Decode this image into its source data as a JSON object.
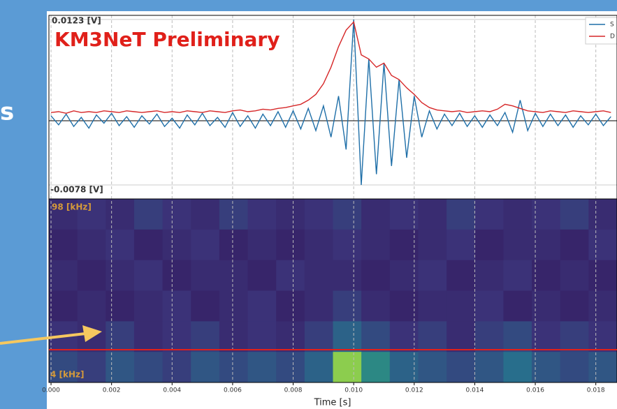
{
  "slide_text": "s",
  "chart_data": {
    "type": "line",
    "annotation": "KM3NeT Preliminary",
    "x_label": "Time [s]",
    "x": [
      0,
      0.00025,
      0.0005,
      0.00075,
      0.001,
      0.00125,
      0.0015,
      0.00175,
      0.002,
      0.00225,
      0.0025,
      0.00275,
      0.003,
      0.00325,
      0.0035,
      0.00375,
      0.004,
      0.00425,
      0.0045,
      0.00475,
      0.005,
      0.00525,
      0.0055,
      0.00575,
      0.006,
      0.00625,
      0.0065,
      0.00675,
      0.007,
      0.00725,
      0.0075,
      0.00775,
      0.008,
      0.00825,
      0.0085,
      0.00875,
      0.009,
      0.00925,
      0.0095,
      0.00975,
      0.01,
      0.01025,
      0.0105,
      0.01075,
      0.011,
      0.01125,
      0.0115,
      0.01175,
      0.012,
      0.01225,
      0.0125,
      0.01275,
      0.013,
      0.01325,
      0.0135,
      0.01375,
      0.014,
      0.01425,
      0.0145,
      0.01475,
      0.015,
      0.01525,
      0.0155,
      0.01575,
      0.016,
      0.01625,
      0.0165,
      0.01675,
      0.017,
      0.01725,
      0.0175,
      0.01775,
      0.018,
      0.01825,
      0.0185
    ],
    "series": [
      {
        "name": "S",
        "color": "#1f6fa8",
        "values": [
          0.0006,
          -0.0005,
          0.0008,
          -0.0007,
          0.0004,
          -0.0009,
          0.0007,
          -0.0003,
          0.0009,
          -0.0006,
          0.0005,
          -0.0008,
          0.0006,
          -0.0004,
          0.0008,
          -0.0007,
          0.0003,
          -0.0009,
          0.0007,
          -0.0005,
          0.0009,
          -0.0006,
          0.0004,
          -0.0008,
          0.001,
          -0.0007,
          0.0006,
          -0.0009,
          0.0008,
          -0.0006,
          0.0011,
          -0.0008,
          0.0012,
          -0.001,
          0.0015,
          -0.0012,
          0.0018,
          -0.002,
          0.003,
          -0.0035,
          0.0123,
          -0.0078,
          0.0075,
          -0.0065,
          0.007,
          -0.0055,
          0.005,
          -0.0045,
          0.003,
          -0.002,
          0.0012,
          -0.001,
          0.0008,
          -0.0006,
          0.0009,
          -0.0007,
          0.0006,
          -0.0008,
          0.0007,
          -0.0006,
          0.001,
          -0.0014,
          0.0025,
          -0.0012,
          0.0009,
          -0.0007,
          0.0008,
          -0.0006,
          0.0007,
          -0.0008,
          0.0006,
          -0.0005,
          0.0008,
          -0.0006,
          0.0005
        ]
      },
      {
        "name": "D",
        "color": "#d62728",
        "values": [
          0.001,
          0.0011,
          0.0009,
          0.0012,
          0.001,
          0.0011,
          0.001,
          0.0012,
          0.0011,
          0.001,
          0.0012,
          0.0011,
          0.001,
          0.0011,
          0.0012,
          0.001,
          0.0011,
          0.001,
          0.0012,
          0.0011,
          0.001,
          0.0012,
          0.0011,
          0.001,
          0.0012,
          0.0013,
          0.0011,
          0.0012,
          0.0014,
          0.0013,
          0.0015,
          0.0016,
          0.0018,
          0.002,
          0.0025,
          0.0032,
          0.0045,
          0.0065,
          0.009,
          0.011,
          0.012,
          0.008,
          0.0075,
          0.0065,
          0.007,
          0.0055,
          0.005,
          0.004,
          0.0032,
          0.0022,
          0.0016,
          0.0013,
          0.0012,
          0.0011,
          0.0012,
          0.001,
          0.0011,
          0.0012,
          0.0011,
          0.0014,
          0.002,
          0.0018,
          0.0015,
          0.0012,
          0.0011,
          0.001,
          0.0012,
          0.0011,
          0.001,
          0.0012,
          0.0011,
          0.001,
          0.0011,
          0.0012,
          0.001
        ]
      }
    ],
    "xlim": [
      -7e-05,
      0.0187
    ],
    "xticks": [
      {
        "value": 0,
        "label": "0.000"
      },
      {
        "value": 0.002,
        "label": "0.002"
      },
      {
        "value": 0.004,
        "label": "0.004"
      },
      {
        "value": 0.006,
        "label": "0.006"
      },
      {
        "value": 0.008,
        "label": "0.008"
      },
      {
        "value": 0.01,
        "label": "0.010"
      },
      {
        "value": 0.012,
        "label": "0.012"
      },
      {
        "value": 0.014,
        "label": "0.014"
      },
      {
        "value": 0.016,
        "label": "0.016"
      },
      {
        "value": 0.018,
        "label": "0.018"
      }
    ],
    "ylim": [
      -0.0095,
      0.0128
    ],
    "yticks": [
      {
        "value": 0.0123,
        "label": "0.0123 [V]"
      },
      {
        "value": -0.0078,
        "label": "-0.0078 [V]"
      }
    ],
    "hline": 0,
    "grid": true,
    "legend": "upper right",
    "spectrogram": {
      "colormap": "viridis",
      "y_top_label": "98 [kHz]",
      "y_bottom_label": "4 [kHz]",
      "z": [
        [
          0.2,
          0.25,
          0.2,
          0.3,
          0.25,
          0.2,
          0.3,
          0.25,
          0.2,
          0.25,
          0.3,
          0.2,
          0.25,
          0.2,
          0.3,
          0.25,
          0.2,
          0.25,
          0.3,
          0.2
        ],
        [
          0.15,
          0.2,
          0.25,
          0.15,
          0.2,
          0.25,
          0.15,
          0.2,
          0.15,
          0.2,
          0.25,
          0.2,
          0.15,
          0.2,
          0.25,
          0.15,
          0.2,
          0.2,
          0.15,
          0.25
        ],
        [
          0.2,
          0.15,
          0.2,
          0.25,
          0.15,
          0.2,
          0.2,
          0.15,
          0.25,
          0.2,
          0.2,
          0.15,
          0.2,
          0.25,
          0.15,
          0.2,
          0.25,
          0.15,
          0.2,
          0.15
        ],
        [
          0.15,
          0.2,
          0.15,
          0.2,
          0.25,
          0.15,
          0.2,
          0.25,
          0.15,
          0.2,
          0.3,
          0.2,
          0.15,
          0.2,
          0.2,
          0.25,
          0.15,
          0.2,
          0.15,
          0.2
        ],
        [
          0.25,
          0.2,
          0.3,
          0.2,
          0.25,
          0.3,
          0.2,
          0.25,
          0.2,
          0.3,
          0.45,
          0.35,
          0.25,
          0.3,
          0.2,
          0.3,
          0.35,
          0.25,
          0.3,
          0.25
        ],
        [
          0.35,
          0.3,
          0.4,
          0.35,
          0.3,
          0.4,
          0.35,
          0.4,
          0.35,
          0.45,
          0.9,
          0.6,
          0.45,
          0.4,
          0.35,
          0.4,
          0.5,
          0.4,
          0.35,
          0.4
        ]
      ]
    }
  }
}
